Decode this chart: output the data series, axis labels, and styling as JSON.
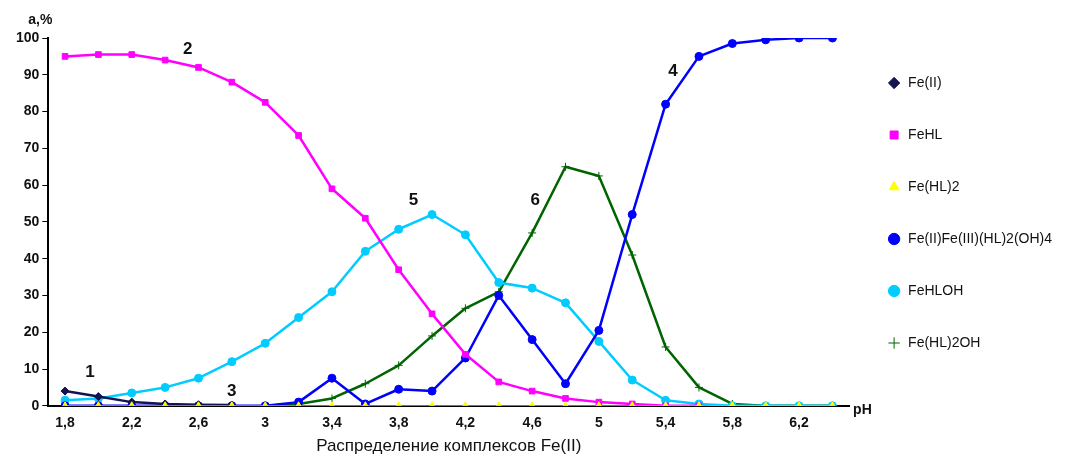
{
  "chart_data": {
    "type": "line",
    "xlabel": "Распределение комплексов Fe(II)",
    "ylabel": "a,%",
    "x": [
      1.8,
      2.0,
      2.2,
      2.4,
      2.6,
      2.8,
      3.0,
      3.2,
      3.4,
      3.6,
      3.8,
      4.0,
      4.2,
      4.4,
      4.6,
      4.8,
      5.0,
      5.2,
      5.4,
      5.6,
      5.8,
      6.0,
      6.2,
      6.4
    ],
    "xlim": [
      1.7,
      6.5
    ],
    "xticks": [
      {
        "value": 1.8,
        "label": "1,8"
      },
      {
        "value": 2.2,
        "label": "2,2"
      },
      {
        "value": 2.6,
        "label": "2,6"
      },
      3,
      {
        "value": 3.4,
        "label": "3,4"
      },
      {
        "value": 3.8,
        "label": "3,8"
      },
      {
        "value": 4.2,
        "label": "4,2"
      },
      {
        "value": 4.6,
        "label": "4,6"
      },
      5,
      {
        "value": 5.4,
        "label": "5,4"
      },
      {
        "value": 5.8,
        "label": "5,8"
      },
      {
        "value": 6.2,
        "label": "6,2"
      }
    ],
    "ylim": [
      0,
      100
    ],
    "yticks": [
      0,
      10,
      20,
      30,
      40,
      50,
      60,
      70,
      80,
      90,
      100
    ],
    "grid": false,
    "legend": "right",
    "line_style": "solid",
    "series": [
      {
        "name": "Fe(II)",
        "color": "#141450",
        "marker": "diamond",
        "values": [
          4,
          2.5,
          1,
          0.5,
          0.3,
          0.2,
          null,
          null,
          null,
          null,
          null,
          null,
          null,
          null,
          null,
          null,
          null,
          null,
          null,
          null,
          null,
          null,
          null,
          null
        ]
      },
      {
        "name": "FeHL",
        "color": "#ff00ff",
        "marker": "square",
        "values": [
          95,
          95.5,
          95.5,
          94,
          92,
          88,
          82.5,
          73.5,
          59,
          51,
          37,
          25,
          14,
          6.5,
          4,
          2,
          1,
          0.5,
          0,
          0,
          null,
          null,
          null,
          null
        ]
      },
      {
        "name": "Fe(HL)2",
        "color": "#ffff00",
        "marker": "triangle",
        "values": [
          0,
          0,
          0,
          0,
          0,
          0,
          0,
          0,
          0,
          0,
          0,
          0,
          0,
          0,
          0,
          0,
          0,
          0,
          0,
          0,
          0,
          0,
          0,
          0
        ]
      },
      {
        "name": "Fe(II)Fe(III)(HL)2(OH)4",
        "color": "#0000ff",
        "marker": "circle",
        "values": [
          0,
          0,
          0,
          0,
          0,
          0,
          0,
          1,
          7.5,
          0.5,
          4.5,
          4,
          13,
          30,
          18,
          6,
          20.5,
          52,
          82,
          95,
          98.5,
          99.5,
          100,
          100
        ]
      },
      {
        "name": "FeHLOH",
        "color": "#00ccff",
        "marker": "circle",
        "values": [
          1.5,
          2,
          3.5,
          5,
          7.5,
          12,
          17,
          24,
          31,
          42,
          48,
          52,
          46.5,
          33.5,
          32,
          28,
          17.5,
          7,
          1.5,
          0.5,
          0,
          0,
          0,
          0
        ]
      },
      {
        "name": "Fe(HL)2OH",
        "color": "#006400",
        "marker": "cross",
        "values": [
          null,
          null,
          null,
          null,
          null,
          null,
          0,
          0.5,
          2,
          6,
          11,
          19,
          26.5,
          31,
          47,
          65,
          62.5,
          41,
          16,
          5,
          0.5,
          0,
          0,
          0
        ]
      }
    ],
    "annotations": [
      "1",
      "2",
      "3",
      "4",
      "5",
      "6",
      "pH"
    ]
  }
}
